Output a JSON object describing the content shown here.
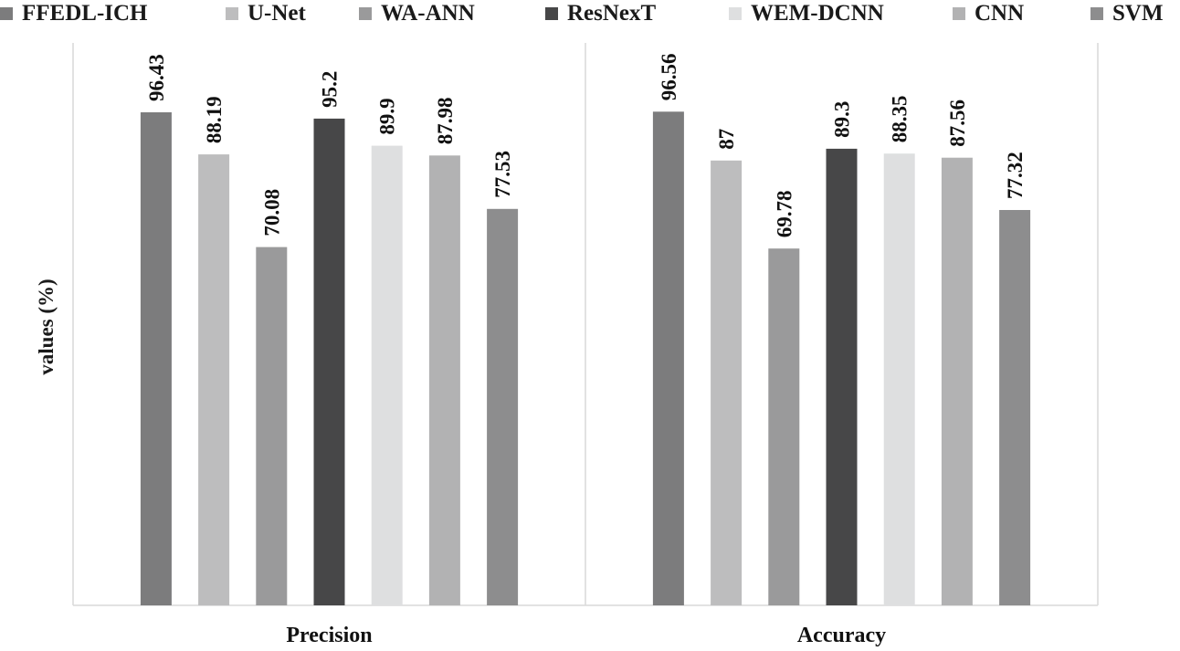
{
  "chart_data": {
    "type": "bar",
    "title": "",
    "xlabel": "",
    "ylabel": "values (%)",
    "ylim": [
      0,
      110
    ],
    "grid": false,
    "legend_position": "top",
    "categories": [
      "Precision",
      "Accuracy"
    ],
    "series": [
      {
        "name": "FFEDL-ICH",
        "color": "#7c7c7d",
        "values": [
          96.43,
          96.56
        ]
      },
      {
        "name": "U-Net",
        "color": "#bdbdbe",
        "values": [
          88.19,
          87
        ]
      },
      {
        "name": "WA-ANN",
        "color": "#9a9a9b",
        "values": [
          70.08,
          69.78
        ]
      },
      {
        "name": "ResNexT",
        "color": "#474748",
        "values": [
          95.2,
          89.3
        ]
      },
      {
        "name": "WEM-DCNN",
        "color": "#dedfe0",
        "values": [
          89.9,
          88.35
        ]
      },
      {
        "name": "CNN",
        "color": "#b2b2b3",
        "values": [
          87.98,
          87.56
        ]
      },
      {
        "name": "SVM",
        "color": "#8d8d8e",
        "values": [
          77.53,
          77.32
        ]
      }
    ],
    "value_labels": [
      [
        "96.43",
        "96.56"
      ],
      [
        "88.19",
        "87"
      ],
      [
        "70.08",
        "69.78"
      ],
      [
        "95.2",
        "89.3"
      ],
      [
        "89.9",
        "88.35"
      ],
      [
        "87.98",
        "87.56"
      ],
      [
        "77.53",
        "77.32"
      ]
    ]
  }
}
